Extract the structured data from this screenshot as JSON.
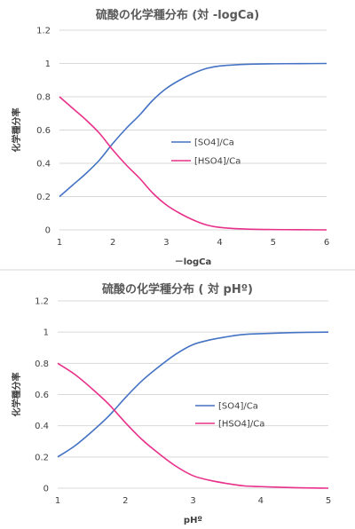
{
  "chart_data": [
    {
      "type": "line",
      "title": "硫酸の化学種分布 (対 -logCa)",
      "xlabel": "－logCa",
      "ylabel": "化学種分率",
      "xlim": [
        1,
        6
      ],
      "ylim": [
        0,
        1.2
      ],
      "xticks": [
        "1",
        "2",
        "3",
        "4",
        "5",
        "6"
      ],
      "yticks": [
        "0",
        "0.2",
        "0.4",
        "0.6",
        "0.8",
        "1",
        "1.2"
      ],
      "grid": true,
      "legend_position": "middle-right",
      "series": [
        {
          "name": "[SO4]/Ca",
          "color": "#4472C4",
          "x": [
            1,
            1.25,
            1.5,
            1.75,
            2,
            2.25,
            2.5,
            2.75,
            3,
            3.25,
            3.5,
            3.75,
            4,
            4.5,
            5,
            5.5,
            6
          ],
          "y": [
            0.2,
            0.27,
            0.34,
            0.42,
            0.52,
            0.61,
            0.69,
            0.78,
            0.85,
            0.9,
            0.94,
            0.97,
            0.985,
            0.995,
            0.998,
            0.999,
            1.0
          ]
        },
        {
          "name": "[HSO4]/Ca",
          "color": "#E8308A",
          "x": [
            1,
            1.25,
            1.5,
            1.75,
            2,
            2.25,
            2.5,
            2.75,
            3,
            3.25,
            3.5,
            3.75,
            4,
            4.5,
            5,
            5.5,
            6
          ],
          "y": [
            0.8,
            0.73,
            0.66,
            0.58,
            0.48,
            0.39,
            0.31,
            0.22,
            0.15,
            0.1,
            0.06,
            0.03,
            0.015,
            0.005,
            0.002,
            0.001,
            0.0
          ]
        }
      ]
    },
    {
      "type": "line",
      "title": "硫酸の化学種分布 ( 対 pHº)",
      "xlabel": "pHº",
      "ylabel": "化学種分率",
      "xlim": [
        1,
        5
      ],
      "ylim": [
        0,
        1.2
      ],
      "xticks": [
        "1",
        "2",
        "3",
        "4",
        "5"
      ],
      "yticks": [
        "0",
        "0.2",
        "0.4",
        "0.6",
        "0.8",
        "1",
        "1.2"
      ],
      "grid": true,
      "legend_position": "middle-right",
      "series": [
        {
          "name": "[SO4]/Ca",
          "color": "#4472C4",
          "x": [
            1,
            1.25,
            1.5,
            1.75,
            2,
            2.25,
            2.5,
            2.75,
            3,
            3.25,
            3.5,
            3.75,
            4,
            4.5,
            5
          ],
          "y": [
            0.2,
            0.27,
            0.36,
            0.46,
            0.58,
            0.69,
            0.78,
            0.86,
            0.92,
            0.95,
            0.97,
            0.985,
            0.99,
            0.997,
            1.0
          ]
        },
        {
          "name": "[HSO4]/Ca",
          "color": "#E8308A",
          "x": [
            1,
            1.25,
            1.5,
            1.75,
            2,
            2.25,
            2.5,
            2.75,
            3,
            3.25,
            3.5,
            3.75,
            4,
            4.5,
            5
          ],
          "y": [
            0.8,
            0.73,
            0.64,
            0.54,
            0.42,
            0.31,
            0.22,
            0.14,
            0.08,
            0.05,
            0.03,
            0.015,
            0.01,
            0.003,
            0.0
          ]
        }
      ]
    }
  ]
}
